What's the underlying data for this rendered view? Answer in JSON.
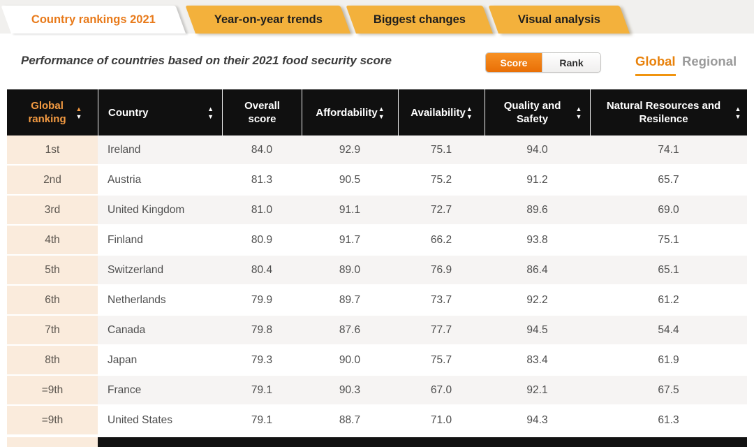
{
  "tabs": [
    {
      "label": "Country rankings 2021",
      "active": true
    },
    {
      "label": "Year-on-year trends",
      "active": false
    },
    {
      "label": "Biggest changes",
      "active": false
    },
    {
      "label": "Visual analysis",
      "active": false
    }
  ],
  "subtitle": "Performance of countries based on their 2021 food security score",
  "view_toggle": {
    "score_label": "Score",
    "rank_label": "Rank",
    "selected": "Score"
  },
  "scope_toggle": {
    "global_label": "Global",
    "regional_label": "Regional",
    "selected": "Global"
  },
  "table": {
    "columns": [
      {
        "label": "Global ranking",
        "sortable": true,
        "accent": true
      },
      {
        "label": "Country",
        "sortable": true
      },
      {
        "label": "Overall score",
        "sortable": false
      },
      {
        "label": "Affordability",
        "sortable": true
      },
      {
        "label": "Availability",
        "sortable": true
      },
      {
        "label": "Quality and Safety",
        "sortable": true
      },
      {
        "label": "Natural Resources and Resilence",
        "sortable": true
      }
    ],
    "rows": [
      {
        "rank": "1st",
        "country": "Ireland",
        "overall": "84.0",
        "affordability": "92.9",
        "availability": "75.1",
        "quality": "94.0",
        "natural": "74.1"
      },
      {
        "rank": "2nd",
        "country": "Austria",
        "overall": "81.3",
        "affordability": "90.5",
        "availability": "75.2",
        "quality": "91.2",
        "natural": "65.7"
      },
      {
        "rank": "3rd",
        "country": "United Kingdom",
        "overall": "81.0",
        "affordability": "91.1",
        "availability": "72.7",
        "quality": "89.6",
        "natural": "69.0"
      },
      {
        "rank": "4th",
        "country": "Finland",
        "overall": "80.9",
        "affordability": "91.7",
        "availability": "66.2",
        "quality": "93.8",
        "natural": "75.1"
      },
      {
        "rank": "5th",
        "country": "Switzerland",
        "overall": "80.4",
        "affordability": "89.0",
        "availability": "76.9",
        "quality": "86.4",
        "natural": "65.1"
      },
      {
        "rank": "6th",
        "country": "Netherlands",
        "overall": "79.9",
        "affordability": "89.7",
        "availability": "73.7",
        "quality": "92.2",
        "natural": "61.2"
      },
      {
        "rank": "7th",
        "country": "Canada",
        "overall": "79.8",
        "affordability": "87.6",
        "availability": "77.7",
        "quality": "94.5",
        "natural": "54.4"
      },
      {
        "rank": "8th",
        "country": "Japan",
        "overall": "79.3",
        "affordability": "90.0",
        "availability": "75.7",
        "quality": "83.4",
        "natural": "61.9"
      },
      {
        "rank": "=9th",
        "country": "France",
        "overall": "79.1",
        "affordability": "90.3",
        "availability": "67.0",
        "quality": "92.1",
        "natural": "67.5"
      },
      {
        "rank": "=9th",
        "country": "United States",
        "overall": "79.1",
        "affordability": "88.7",
        "availability": "71.0",
        "quality": "94.3",
        "natural": "61.3"
      }
    ]
  },
  "icons": {
    "sort_asc": "▲",
    "sort_desc": "▼"
  },
  "colors": {
    "tab_amber": "#F3B13C",
    "active_tab_text": "#E87A1A",
    "header_bg": "#101010",
    "header_accent_orange": "#F49B42",
    "score_button_orange": "#F07C10",
    "global_link_orange": "#E8820C",
    "rank_column_peach": "#FAEBDC",
    "row_alt_gray": "#F6F4F3"
  }
}
